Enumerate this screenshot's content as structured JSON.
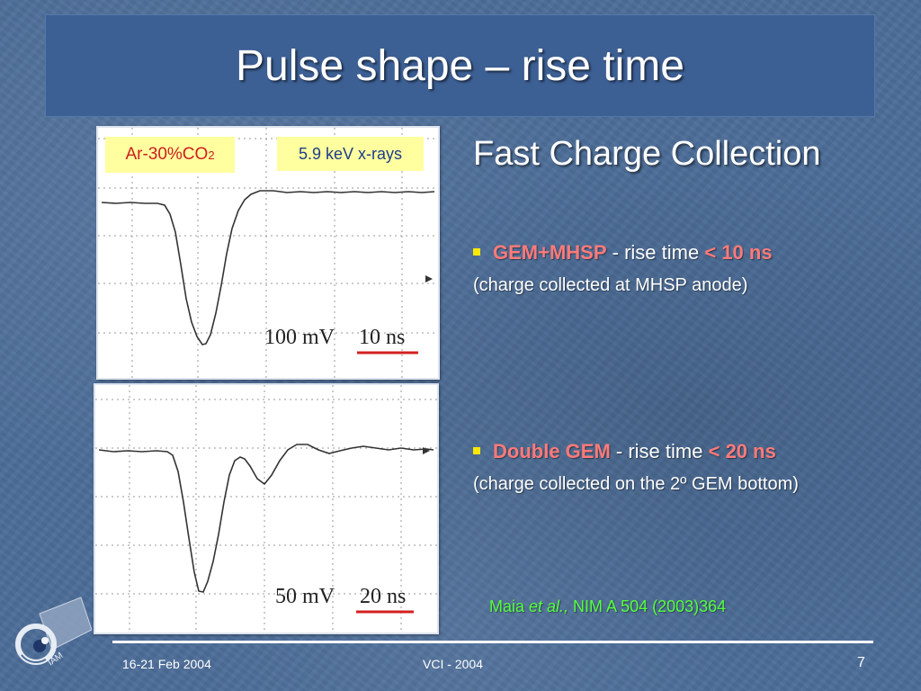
{
  "slide": {
    "title": "Pulse shape – rise time",
    "heading": "Fast Charge Collection"
  },
  "scope1": {
    "gas_label": "Ar-30%CO",
    "gas_subscript": "2",
    "source_label": "5.9 keV x-rays",
    "volt_scale": "100 mV",
    "time_scale": "10 ns"
  },
  "scope2": {
    "volt_scale": "50 mV",
    "time_scale": "20 ns"
  },
  "bullets": [
    {
      "label": "GEM+MHSP",
      "mid": " - rise time ",
      "op": "<",
      "value": "10 ns",
      "note": "(charge collected at MHSP anode)"
    },
    {
      "label": "Double GEM",
      "mid": " - rise time ",
      "op": "<",
      "value": "20 ns",
      "note": "(charge collected on the 2º GEM bottom)"
    }
  ],
  "reference": {
    "author": "Maia ",
    "etal": "et al.,",
    "citation": " NIM A 504 (2003)364"
  },
  "footer": {
    "date": "16-21 Feb 2004",
    "conference": "VCI  - 2004",
    "page": "7"
  },
  "colors": {
    "background": "#4d6e99",
    "title_bar": "#3c5f94",
    "highlight_red": "#ff7a7a",
    "reference_green": "#55ff3a",
    "bullet_yellow": "#ffe800",
    "label_fill": "#ffff9f"
  }
}
